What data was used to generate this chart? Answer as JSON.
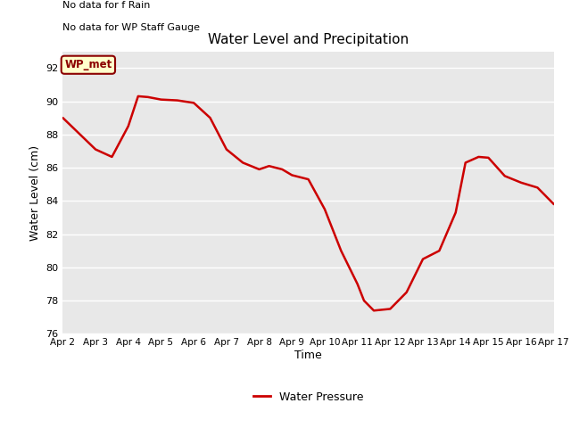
{
  "title": "Water Level and Precipitation",
  "xlabel": "Time",
  "ylabel": "Water Level (cm)",
  "ylim": [
    76,
    93
  ],
  "yticks": [
    76,
    78,
    80,
    82,
    84,
    86,
    88,
    90,
    92
  ],
  "x_labels": [
    "Apr 2",
    "Apr 3",
    "Apr 4",
    "Apr 5",
    "Apr 6",
    "Apr 7",
    "Apr 8",
    "Apr 9",
    "Apr 10",
    "Apr 11",
    "Apr 12",
    "Apr 13",
    "Apr 14",
    "Apr 15",
    "Apr 16",
    "Apr 17"
  ],
  "x_values": [
    2,
    3,
    4,
    5,
    6,
    7,
    8,
    9,
    10,
    11,
    12,
    13,
    14,
    15,
    16,
    17
  ],
  "water_pressure_x": [
    2,
    3,
    3.5,
    4.0,
    4.3,
    4.6,
    5.0,
    5.5,
    6.0,
    6.5,
    7.0,
    7.5,
    8.0,
    8.3,
    8.7,
    9.0,
    9.5,
    10.0,
    10.5,
    11.0,
    11.2,
    11.5,
    12.0,
    12.5,
    13.0,
    13.5,
    14.0,
    14.3,
    14.7,
    15.0,
    15.5,
    16.0,
    16.5,
    17.0
  ],
  "water_pressure_y": [
    89.0,
    87.1,
    86.65,
    88.5,
    90.3,
    90.25,
    90.1,
    90.05,
    89.9,
    89.0,
    87.1,
    86.3,
    85.9,
    86.1,
    85.9,
    85.55,
    85.3,
    83.5,
    81.0,
    79.0,
    78.0,
    77.4,
    77.5,
    78.5,
    80.5,
    81.0,
    83.3,
    86.3,
    86.65,
    86.6,
    85.5,
    85.1,
    84.8,
    83.8
  ],
  "line_color": "#cc0000",
  "line_width": 1.8,
  "background_color": "#e8e8e8",
  "grid_color": "#ffffff",
  "no_data_text1": "No data for f Rain",
  "no_data_text2": "No data for WP Staff Gauge",
  "wp_met_label": "WP_met",
  "legend_label": "Water Pressure",
  "legend_line_color": "#cc0000",
  "wp_met_bg": "#ffffcc",
  "wp_met_border": "#8b0000",
  "wp_met_text_color": "#8b0000"
}
